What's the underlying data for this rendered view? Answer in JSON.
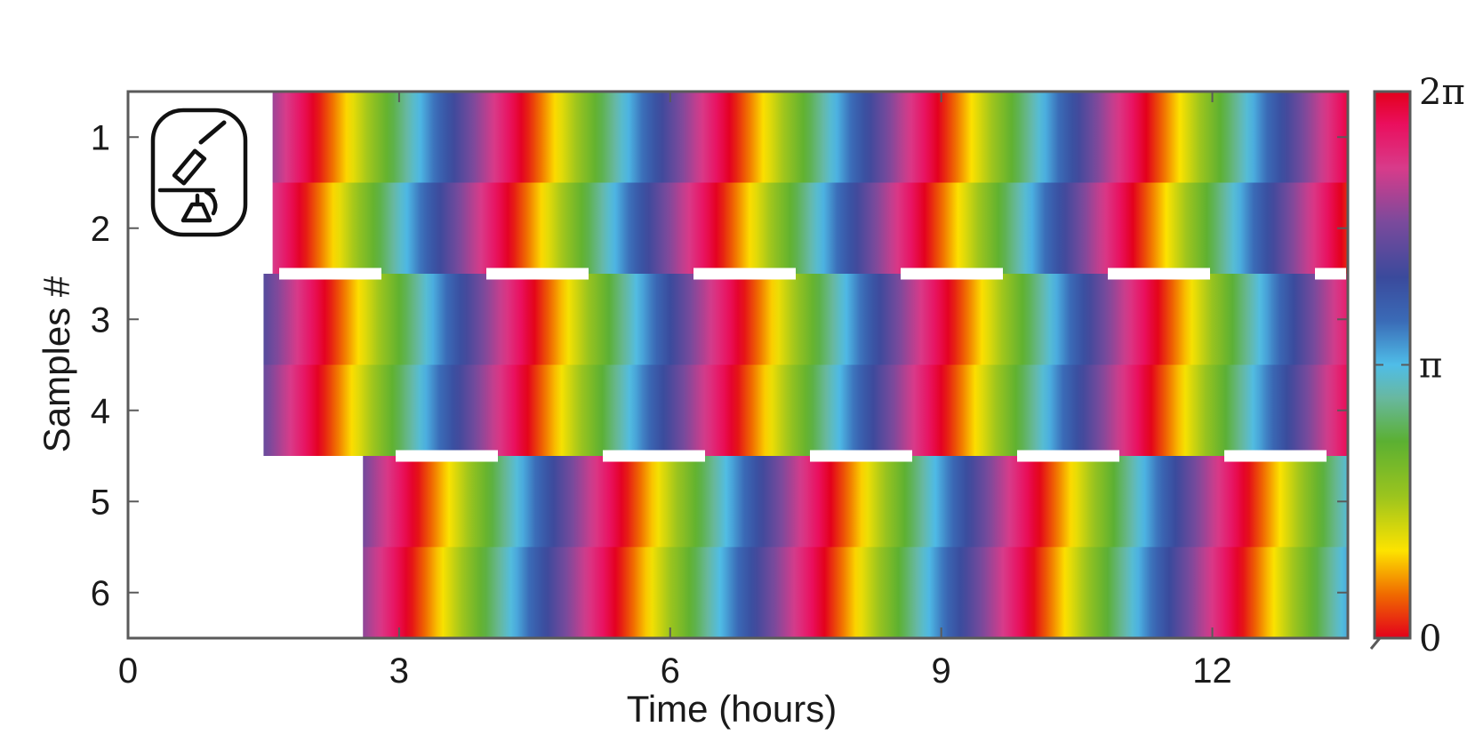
{
  "chart_data": {
    "type": "heatmap",
    "title": "",
    "xlabel": "Time (hours)",
    "ylabel": "Samples #",
    "xlim": [
      0,
      13.5
    ],
    "ylim": [
      0.5,
      6.5
    ],
    "x_ticks": [
      0,
      3,
      6,
      9,
      12
    ],
    "y_ticks": [
      1,
      2,
      3,
      4,
      5,
      6
    ],
    "x_tick_labels": [
      "0",
      "3",
      "6",
      "9",
      "12"
    ],
    "y_tick_labels": [
      "1",
      "2",
      "3",
      "4",
      "5",
      "6"
    ],
    "colorbar": {
      "quantity": "phase",
      "range": [
        0,
        6.2832
      ],
      "tick_labels": [
        "0",
        "π",
        "2π"
      ],
      "colormap": "cyclic: red → yellow → green → cyan → blue → magenta → red"
    },
    "samples": [
      {
        "sample": 1,
        "start_hour": 1.6,
        "period_hours": 2.3,
        "phase_at_start": 5.0
      },
      {
        "sample": 2,
        "start_hour": 1.6,
        "period_hours": 2.3,
        "phase_at_start": 5.4
      },
      {
        "sample": 3,
        "start_hour": 1.5,
        "period_hours": 2.3,
        "phase_at_start": 4.4
      },
      {
        "sample": 4,
        "start_hour": 1.5,
        "period_hours": 2.3,
        "phase_at_start": 4.6
      },
      {
        "sample": 5,
        "start_hour": 2.6,
        "period_hours": 2.3,
        "phase_at_start": 4.7
      },
      {
        "sample": 6,
        "start_hour": 2.6,
        "period_hours": 2.3,
        "phase_at_start": 4.9
      }
    ],
    "separators": [
      {
        "between_samples": [
          2,
          3
        ],
        "style": "white dashed"
      },
      {
        "between_samples": [
          4,
          5
        ],
        "style": "white dashed"
      }
    ],
    "icon": "microscope-icon"
  }
}
